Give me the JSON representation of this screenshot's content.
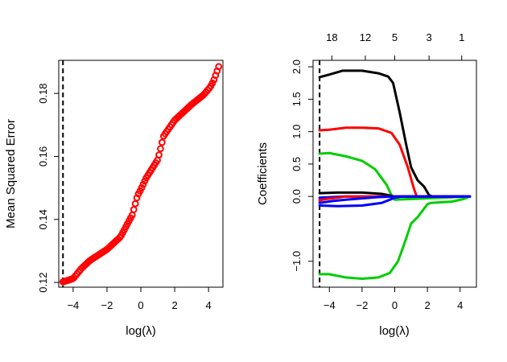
{
  "chart_data": [
    {
      "type": "scatter",
      "xlabel": "log(λ)",
      "ylabel": "Mean Squared Error",
      "xlim": [
        -4.85,
        4.85
      ],
      "ylim": [
        0.1185,
        0.1905
      ],
      "x_ticks": [
        -4,
        -2,
        0,
        2,
        4
      ],
      "x_tick_labels": [
        "−4",
        "−2",
        "0",
        "2",
        "4"
      ],
      "y_ticks": [
        0.12,
        0.14,
        0.16,
        0.18
      ],
      "y_tick_labels": [
        "0.12",
        "0.14",
        "0.16",
        "0.18"
      ],
      "marker_color": "#ff0000",
      "marker": "open-circle",
      "vline_x": -4.6,
      "curve_knots": [
        {
          "x": -4.6,
          "y": 0.1202
        },
        {
          "x": -4.0,
          "y": 0.1212
        },
        {
          "x": -3.5,
          "y": 0.1245
        },
        {
          "x": -3.0,
          "y": 0.127
        },
        {
          "x": -2.0,
          "y": 0.1305
        },
        {
          "x": -1.2,
          "y": 0.1345
        },
        {
          "x": -0.5,
          "y": 0.1415
        },
        {
          "x": -0.2,
          "y": 0.1475
        },
        {
          "x": 0.0,
          "y": 0.1495
        },
        {
          "x": 0.3,
          "y": 0.153
        },
        {
          "x": 1.0,
          "y": 0.159
        },
        {
          "x": 1.35,
          "y": 0.1665
        },
        {
          "x": 2.0,
          "y": 0.1715
        },
        {
          "x": 3.0,
          "y": 0.1765
        },
        {
          "x": 3.7,
          "y": 0.1795
        },
        {
          "x": 4.1,
          "y": 0.182
        },
        {
          "x": 4.3,
          "y": 0.184
        },
        {
          "x": 4.6,
          "y": 0.1885
        }
      ],
      "n_points": 100
    },
    {
      "type": "line",
      "xlabel": "log(λ)",
      "ylabel": "Coefficients",
      "xlim": [
        -5.0,
        5.0
      ],
      "ylim": [
        -1.4,
        2.1
      ],
      "x_ticks": [
        -4,
        -2,
        0,
        2,
        4
      ],
      "x_tick_labels": [
        "−4",
        "−2",
        "0",
        "2",
        "4"
      ],
      "y_ticks": [
        -1.0,
        0.0,
        0.5,
        1.0,
        1.5,
        2.0
      ],
      "y_tick_labels": [
        "−1.0",
        "0.0",
        "0.5",
        "1.0",
        "1.5",
        "2.0"
      ],
      "top_axis": [
        {
          "x": -3.85,
          "label": "18"
        },
        {
          "x": -1.8,
          "label": "12"
        },
        {
          "x": 0.0,
          "label": "5"
        },
        {
          "x": 2.1,
          "label": "3"
        },
        {
          "x": 4.1,
          "label": "1"
        }
      ],
      "vline_x": -4.6,
      "series": [
        {
          "color": "#000000",
          "points": [
            [
              -4.6,
              1.84
            ],
            [
              -4.0,
              1.88
            ],
            [
              -3.2,
              1.94
            ],
            [
              -2.0,
              1.94
            ],
            [
              -1.0,
              1.9
            ],
            [
              -0.4,
              1.85
            ],
            [
              -0.1,
              1.75
            ],
            [
              0.3,
              1.3
            ],
            [
              0.7,
              0.8
            ],
            [
              1.0,
              0.45
            ],
            [
              1.4,
              0.25
            ],
            [
              1.8,
              0.15
            ],
            [
              2.1,
              0.02
            ],
            [
              2.3,
              0.0
            ],
            [
              4.6,
              0.0
            ]
          ]
        },
        {
          "color": "#ff0000",
          "points": [
            [
              -4.6,
              1.02
            ],
            [
              -4.0,
              1.03
            ],
            [
              -3.0,
              1.06
            ],
            [
              -2.0,
              1.06
            ],
            [
              -1.0,
              1.05
            ],
            [
              -0.2,
              0.98
            ],
            [
              0.3,
              0.8
            ],
            [
              0.8,
              0.45
            ],
            [
              1.2,
              0.1
            ],
            [
              1.35,
              0.0
            ],
            [
              4.6,
              0.0
            ]
          ]
        },
        {
          "color": "#00cd00",
          "points": [
            [
              -4.6,
              0.66
            ],
            [
              -4.0,
              0.67
            ],
            [
              -3.0,
              0.62
            ],
            [
              -2.0,
              0.55
            ],
            [
              -1.2,
              0.42
            ],
            [
              -0.5,
              0.18
            ],
            [
              -0.2,
              0.02
            ],
            [
              0.0,
              -0.05
            ],
            [
              4.6,
              0.0
            ]
          ]
        },
        {
          "color": "#0000ff",
          "points": [
            [
              -4.6,
              -0.02
            ],
            [
              -3.0,
              0.0
            ],
            [
              -1.5,
              0.0
            ],
            [
              4.6,
              0.0
            ]
          ]
        },
        {
          "color": "#000000",
          "points": [
            [
              -4.6,
              0.05
            ],
            [
              -3.5,
              0.06
            ],
            [
              -2.0,
              0.06
            ],
            [
              -0.8,
              0.04
            ],
            [
              0.0,
              0.0
            ],
            [
              4.6,
              0.0
            ]
          ]
        },
        {
          "color": "#ff0000",
          "points": [
            [
              -4.6,
              -0.06
            ],
            [
              -4.2,
              -0.04
            ],
            [
              -3.5,
              -0.02
            ],
            [
              -3.0,
              0.0
            ],
            [
              4.6,
              0.0
            ]
          ]
        },
        {
          "color": "#00cd00",
          "points": [
            [
              -4.6,
              -1.2
            ],
            [
              -4.0,
              -1.2
            ],
            [
              -3.0,
              -1.25
            ],
            [
              -2.0,
              -1.27
            ],
            [
              -1.0,
              -1.25
            ],
            [
              -0.3,
              -1.18
            ],
            [
              0.2,
              -1.0
            ],
            [
              0.6,
              -0.72
            ],
            [
              1.0,
              -0.42
            ],
            [
              1.4,
              -0.32
            ],
            [
              1.7,
              -0.22
            ],
            [
              2.0,
              -0.12
            ],
            [
              2.2,
              -0.1
            ],
            [
              3.5,
              -0.08
            ],
            [
              4.2,
              -0.04
            ],
            [
              4.6,
              0.0
            ]
          ]
        },
        {
          "color": "#0000ff",
          "points": [
            [
              -4.6,
              -0.14
            ],
            [
              -3.5,
              -0.15
            ],
            [
              -2.0,
              -0.14
            ],
            [
              -0.8,
              -0.1
            ],
            [
              0.0,
              -0.02
            ],
            [
              0.5,
              0.0
            ],
            [
              4.6,
              0.0
            ]
          ]
        },
        {
          "color": "#0000ff",
          "points": [
            [
              -4.6,
              -0.1
            ],
            [
              -3.8,
              -0.07
            ],
            [
              -3.0,
              -0.05
            ],
            [
              -2.0,
              -0.03
            ],
            [
              -1.0,
              -0.01
            ],
            [
              0.0,
              0.0
            ],
            [
              4.6,
              0.0
            ]
          ]
        }
      ]
    }
  ]
}
